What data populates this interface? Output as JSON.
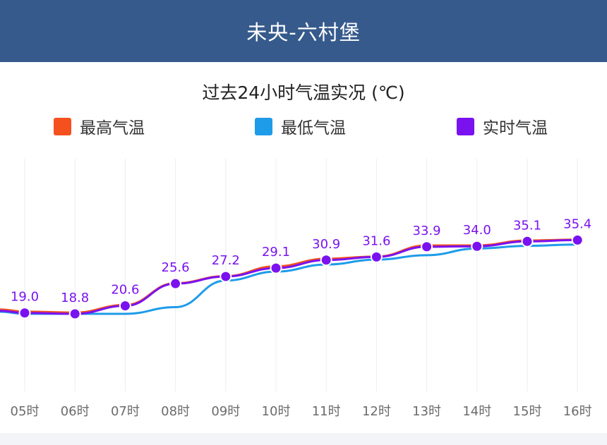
{
  "header": {
    "title": "未央-六村堡"
  },
  "chart_data": {
    "type": "line",
    "title": "过去24小时气温实况 (℃)",
    "categories": [
      "05时",
      "06时",
      "07时",
      "08时",
      "09时",
      "10时",
      "11时",
      "12时",
      "13时",
      "14时",
      "15时",
      "16时"
    ],
    "series": [
      {
        "name": "最高气温",
        "color": "#f4511e",
        "values": [
          19.3,
          19.1,
          20.8,
          25.7,
          27.3,
          29.5,
          31.2,
          31.7,
          34.2,
          34.2,
          35.3,
          35.5
        ]
      },
      {
        "name": "最低气温",
        "color": "#1e9be9",
        "values": [
          18.8,
          18.8,
          18.8,
          20.3,
          26.3,
          28.3,
          29.9,
          31.0,
          32.0,
          33.5,
          34.1,
          34.4
        ]
      },
      {
        "name": "实时气温",
        "color": "#7a12f0",
        "values": [
          19.0,
          18.8,
          20.6,
          25.6,
          27.2,
          29.1,
          30.9,
          31.6,
          33.9,
          34.0,
          35.1,
          35.4
        ],
        "labels": [
          "19.0",
          "18.8",
          "20.6",
          "25.6",
          "27.2",
          "29.1",
          "30.9",
          "31.6",
          "33.9",
          "34.0",
          "35.1",
          "35.4"
        ]
      }
    ],
    "ylim": [
      10,
      40
    ],
    "grid": true,
    "legend_position": "top"
  }
}
